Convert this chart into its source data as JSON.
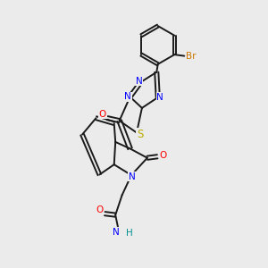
{
  "background_color": "#ebebeb",
  "fig_size": [
    3.0,
    3.0
  ],
  "dpi": 100,
  "bond_color": "#1a1a1a",
  "bond_width": 1.4,
  "atom_colors": {
    "N": "#0000ff",
    "O": "#ff0000",
    "S": "#bbaa00",
    "Br": "#cc7700",
    "H": "#009090"
  },
  "label_fontsize": 7.5,
  "bg": "#ebebeb"
}
